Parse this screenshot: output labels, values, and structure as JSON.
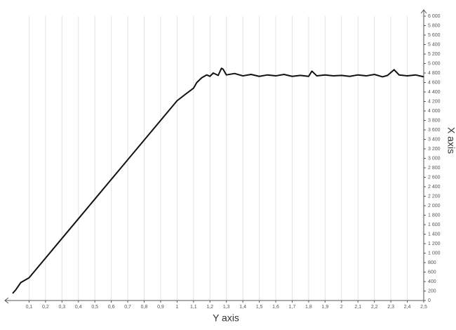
{
  "chart_data": {
    "type": "line",
    "x_label": "Y axis",
    "y_label": "X axis",
    "x": [
      0,
      0.02,
      0.05,
      0.1,
      0.2,
      0.3,
      0.4,
      0.5,
      0.6,
      0.7,
      0.8,
      0.9,
      1.0,
      1.05,
      1.1,
      1.12,
      1.15,
      1.18,
      1.2,
      1.22,
      1.25,
      1.27,
      1.28,
      1.3,
      1.35,
      1.4,
      1.45,
      1.5,
      1.55,
      1.6,
      1.65,
      1.7,
      1.75,
      1.8,
      1.82,
      1.85,
      1.9,
      1.95,
      2.0,
      2.05,
      2.1,
      2.15,
      2.2,
      2.25,
      2.28,
      2.32,
      2.35,
      2.4,
      2.45,
      2.5
    ],
    "series": [
      {
        "color": "#111111",
        "values": [
          150,
          230,
          380,
          480,
          895,
          1310,
          1725,
          2140,
          2555,
          2970,
          3385,
          3800,
          4215,
          4350,
          4480,
          4600,
          4700,
          4760,
          4730,
          4800,
          4750,
          4900,
          4880,
          4760,
          4790,
          4740,
          4770,
          4730,
          4760,
          4740,
          4770,
          4730,
          4750,
          4730,
          4840,
          4740,
          4760,
          4740,
          4750,
          4730,
          4760,
          4740,
          4770,
          4720,
          4750,
          4870,
          4760,
          4740,
          4760,
          4720
        ]
      }
    ],
    "xlim": [
      0,
      2.5
    ],
    "ylim": [
      0,
      6000
    ],
    "xticks": [
      {
        "value": 0.1,
        "label": "0,1"
      },
      {
        "value": 0.2,
        "label": "0,2"
      },
      {
        "value": 0.3,
        "label": "0,3"
      },
      {
        "value": 0.4,
        "label": "0,4"
      },
      {
        "value": 0.5,
        "label": "0,5"
      },
      {
        "value": 0.6,
        "label": "0,6"
      },
      {
        "value": 0.7,
        "label": "0,7"
      },
      {
        "value": 0.8,
        "label": "0,8"
      },
      {
        "value": 0.9,
        "label": "0,9"
      },
      1,
      {
        "value": 1.1,
        "label": "1,1"
      },
      {
        "value": 1.2,
        "label": "1,2"
      },
      {
        "value": 1.3,
        "label": "1,3"
      },
      {
        "value": 1.4,
        "label": "1,4"
      },
      {
        "value": 1.5,
        "label": "1,5"
      },
      {
        "value": 1.6,
        "label": "1,6"
      },
      {
        "value": 1.7,
        "label": "1,7"
      },
      {
        "value": 1.8,
        "label": "1,8"
      },
      {
        "value": 1.9,
        "label": "1,9"
      },
      2,
      {
        "value": 2.1,
        "label": "2,1"
      },
      {
        "value": 2.2,
        "label": "2,2"
      },
      {
        "value": 2.3,
        "label": "2,3"
      },
      {
        "value": 2.4,
        "label": "2,4"
      },
      {
        "value": 2.5,
        "label": "2,5"
      }
    ],
    "yticks": [
      0,
      200,
      400,
      600,
      800,
      {
        "value": 1000,
        "label": "1 000"
      },
      {
        "value": 1200,
        "label": "1 200"
      },
      {
        "value": 1400,
        "label": "1 400"
      },
      {
        "value": 1600,
        "label": "1 600"
      },
      {
        "value": 1800,
        "label": "1 800"
      },
      {
        "value": 2000,
        "label": "2 000"
      },
      {
        "value": 2200,
        "label": "2 200"
      },
      {
        "value": 2400,
        "label": "2 400"
      },
      {
        "value": 2600,
        "label": "2 600"
      },
      {
        "value": 2800,
        "label": "2 800"
      },
      {
        "value": 3000,
        "label": "3 000"
      },
      {
        "value": 3200,
        "label": "3 200"
      },
      {
        "value": 3400,
        "label": "3 400"
      },
      {
        "value": 3600,
        "label": "3 600"
      },
      {
        "value": 3800,
        "label": "3 800"
      },
      {
        "value": 4000,
        "label": "4 000"
      },
      {
        "value": 4200,
        "label": "4 200"
      },
      {
        "value": 4400,
        "label": "4 400"
      },
      {
        "value": 4600,
        "label": "4 600"
      },
      {
        "value": 4800,
        "label": "4 800"
      },
      {
        "value": 5000,
        "label": "5 000"
      },
      {
        "value": 5200,
        "label": "5 200"
      },
      {
        "value": 5400,
        "label": "5 400"
      },
      {
        "value": 5600,
        "label": "5 600"
      },
      {
        "value": 5800,
        "label": "5 800"
      },
      {
        "value": 6000,
        "label": "6 000"
      }
    ],
    "grid": true
  }
}
